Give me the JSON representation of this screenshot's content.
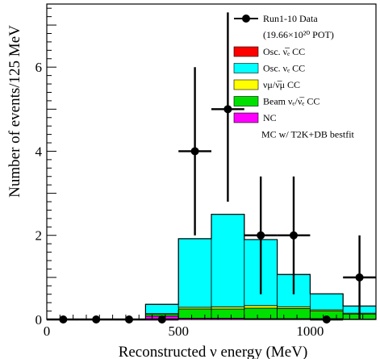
{
  "chart_data": {
    "type": "bar",
    "xlabel": "Reconstructed  ν energy (MeV)",
    "ylabel": "Number of events/125 MeV",
    "xlim": [
      0,
      1250
    ],
    "ylim": [
      0,
      7.5
    ],
    "x_ticks": [
      0,
      500,
      1000
    ],
    "y_ticks": [
      0,
      2,
      4,
      6
    ],
    "bin_width": 125,
    "bin_edges": [
      0,
      125,
      250,
      375,
      500,
      625,
      750,
      875,
      1000,
      1125,
      1250
    ],
    "stack": [
      {
        "key": "nc",
        "label": "NC",
        "color": "#ff00ff",
        "values": [
          0,
          0,
          0,
          0.08,
          0.03,
          0.03,
          0.02,
          0.02,
          0.02,
          0.01
        ]
      },
      {
        "key": "beam",
        "label": "Beam νₑ/ν̅ₑ CC",
        "color": "#00e000",
        "values": [
          0,
          0,
          0,
          0.05,
          0.22,
          0.22,
          0.25,
          0.24,
          0.18,
          0.12
        ]
      },
      {
        "key": "numu",
        "label": "νμ/ν̅μ CC",
        "color": "#ffff00",
        "values": [
          0,
          0,
          0,
          0.01,
          0.04,
          0.05,
          0.06,
          0.04,
          0.03,
          0.02
        ]
      },
      {
        "key": "osc_nue",
        "label": "Osc. νₑ CC",
        "color": "#00ffff",
        "values": [
          0,
          0,
          0,
          0.22,
          1.63,
          2.2,
          1.57,
          0.77,
          0.38,
          0.17
        ]
      },
      {
        "key": "osc_nuebar",
        "label": "Osc. ν̅ₑ CC",
        "color": "#ff0000",
        "values": [
          0,
          0,
          0,
          0,
          0,
          0,
          0,
          0,
          0,
          0
        ]
      }
    ],
    "data_points": {
      "label": "Run1-10 Data",
      "x": [
        62.5,
        187.5,
        312.5,
        437.5,
        562.5,
        687.5,
        812.5,
        937.5,
        1062.5,
        1187.5
      ],
      "y": [
        0,
        0,
        0,
        0,
        4,
        5,
        2,
        2,
        0,
        1
      ],
      "err_up": [
        0,
        0,
        0,
        0,
        2.0,
        2.3,
        1.4,
        1.4,
        0,
        1.0
      ],
      "err_down": [
        0,
        0,
        0,
        0,
        2.0,
        2.2,
        1.4,
        1.4,
        0,
        1.0
      ]
    },
    "legend": {
      "placement": "top-right",
      "data_label": "Run1-10 Data",
      "pot_label": "(19.66×10²⁰ POT)",
      "footer": "MC w/ T2K+DB bestfit"
    }
  }
}
